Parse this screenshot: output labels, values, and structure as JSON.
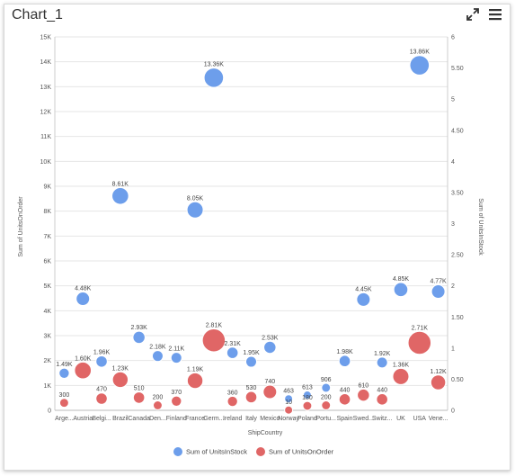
{
  "header": {
    "title": "Chart_1",
    "fullscreen_icon": "expand-icon",
    "menu_icon": "hamburger-menu-icon"
  },
  "colors": {
    "units_in_stock": "#6d9eeb",
    "units_on_order": "#e06666",
    "grid": "#e6e6e6",
    "axis_text": "#555555"
  },
  "chart_data": {
    "type": "scatter",
    "subtype": "bubble",
    "xlabel": "ShipCountry",
    "ylabel_left": "Sum of UnitsOnOrder",
    "ylabel_right": "Sum of UnitsInStock",
    "ylim_left": [
      0,
      15000
    ],
    "ylim_right": [
      0,
      6
    ],
    "y_ticks_left": [
      "0",
      "1K",
      "2K",
      "3K",
      "4K",
      "5K",
      "6K",
      "7K",
      "8K",
      "9K",
      "10K",
      "11K",
      "12K",
      "13K",
      "14K",
      "15K"
    ],
    "y_ticks_right": [
      "0",
      "0.50",
      "1",
      "1.50",
      "2",
      "2.50",
      "3",
      "3.50",
      "4",
      "4.50",
      "5",
      "5.50",
      "6"
    ],
    "grid": true,
    "legend_position": "bottom",
    "categories": [
      "Arge...",
      "Austria",
      "Belgi...",
      "Brazil",
      "Canada",
      "Den...",
      "Finland",
      "France",
      "Germ...",
      "Ireland",
      "Italy",
      "Mexico",
      "Norway",
      "Poland",
      "Portu...",
      "Spain",
      "Swed...",
      "Switz...",
      "UK",
      "USA",
      "Vene..."
    ],
    "series": [
      {
        "name": "Sum of UnitsInStock",
        "values": [
          1490,
          4480,
          1960,
          8610,
          2930,
          2180,
          2110,
          8050,
          13360,
          2310,
          1950,
          2530,
          463,
          613,
          906,
          1980,
          4450,
          1920,
          4850,
          13860,
          4770
        ],
        "labels": [
          "1.49K",
          "4.48K",
          "1.96K",
          "8.61K",
          "2.93K",
          "2.18K",
          "2.11K",
          "8.05K",
          "13.36K",
          "2.31K",
          "1.95K",
          "2.53K",
          "463",
          "613",
          "906",
          "1.98K",
          "4.45K",
          "1.92K",
          "4.85K",
          "13.86K",
          "4.77K"
        ],
        "sizes": [
          0.38,
          0.5,
          0.42,
          0.62,
          0.45,
          0.4,
          0.4,
          0.6,
          0.72,
          0.42,
          0.4,
          0.45,
          0.3,
          0.3,
          0.33,
          0.42,
          0.5,
          0.4,
          0.52,
          0.72,
          0.5
        ]
      },
      {
        "name": "Sum of UnitsOnOrder",
        "values": [
          300,
          1600,
          470,
          1230,
          510,
          200,
          370,
          1190,
          2810,
          360,
          530,
          740,
          10,
          180,
          200,
          440,
          610,
          440,
          1360,
          2710,
          1120
        ],
        "labels": [
          "300",
          "1.60K",
          "470",
          "1.23K",
          "510",
          "200",
          "370",
          "1.19K",
          "2.81K",
          "360",
          "530",
          "740",
          "10",
          "180",
          "200",
          "440",
          "610",
          "440",
          "1.36K",
          "2.71K",
          "1.12K"
        ],
        "sizes": [
          0.33,
          0.62,
          0.42,
          0.58,
          0.42,
          0.33,
          0.38,
          0.58,
          0.85,
          0.38,
          0.42,
          0.5,
          0.3,
          0.33,
          0.33,
          0.42,
          0.45,
          0.42,
          0.6,
          0.85,
          0.55
        ]
      }
    ]
  }
}
